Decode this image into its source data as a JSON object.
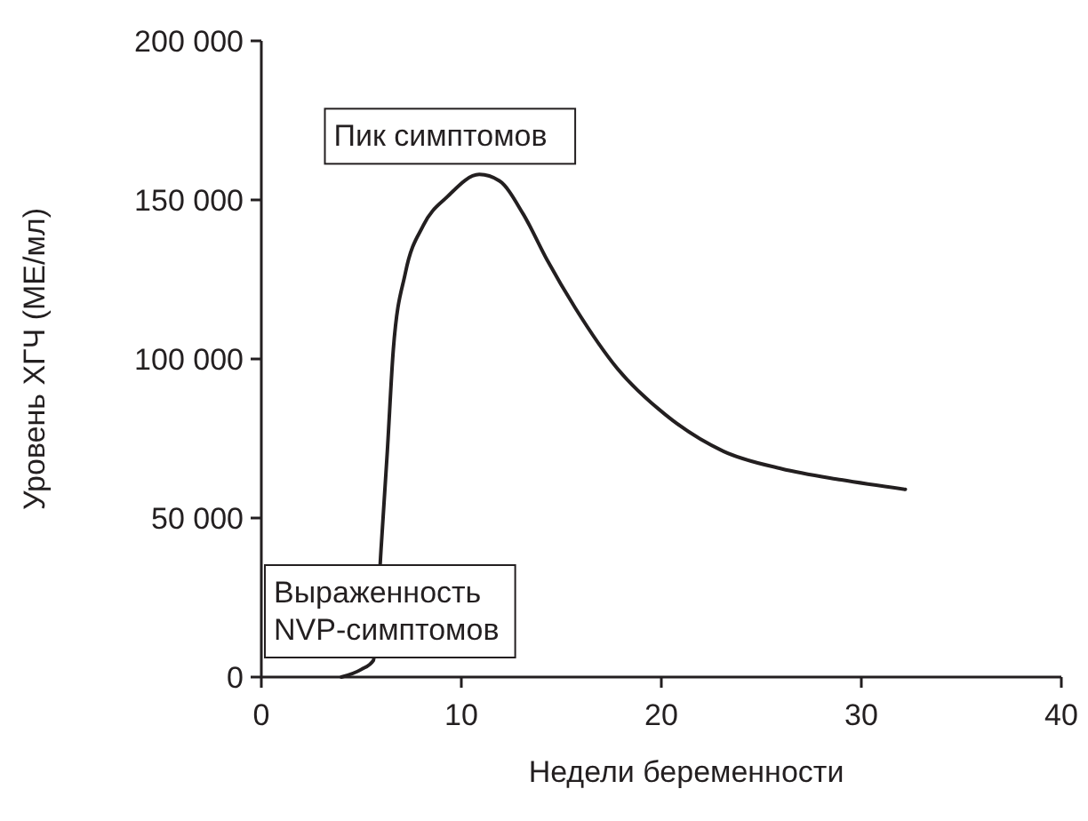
{
  "chart_data": {
    "type": "line",
    "xlabel": "Недели беременности",
    "ylabel": "Уровень ХГЧ (МЕ/мл)",
    "xlim": [
      0,
      40
    ],
    "xticks": [
      0,
      10,
      20,
      30,
      40
    ],
    "ylim": [
      0,
      200000
    ],
    "yticks": [
      {
        "value": 0,
        "label": "0"
      },
      {
        "value": 50000,
        "label": "50 000"
      },
      {
        "value": 100000,
        "label": "100 000"
      },
      {
        "value": 150000,
        "label": "150 000"
      },
      {
        "value": 200000,
        "label": "200 000"
      }
    ],
    "grid": false,
    "marker": "none",
    "line_style": "solid",
    "series": [
      {
        "color": "#231f20",
        "x": [
          4,
          5,
          5.6,
          6,
          6.3,
          6.6,
          7.2,
          8.1,
          9.3,
          10.9,
          11.9,
          13.1,
          14.3,
          15.7,
          17.8,
          20.2,
          23.1,
          26,
          29,
          32.2
        ],
        "values": [
          0,
          2400,
          5200,
          41500,
          71000,
          103000,
          127000,
          142000,
          151000,
          158000,
          156000,
          145500,
          131000,
          116000,
          97000,
          82500,
          71000,
          65500,
          62000,
          59000
        ]
      }
    ],
    "annotations": [
      {
        "text": "Пик симптомов",
        "x": 11,
        "y": 158000
      },
      {
        "text": "Выраженность\nNVP-симптомов",
        "x": 4,
        "y": 0
      }
    ]
  }
}
